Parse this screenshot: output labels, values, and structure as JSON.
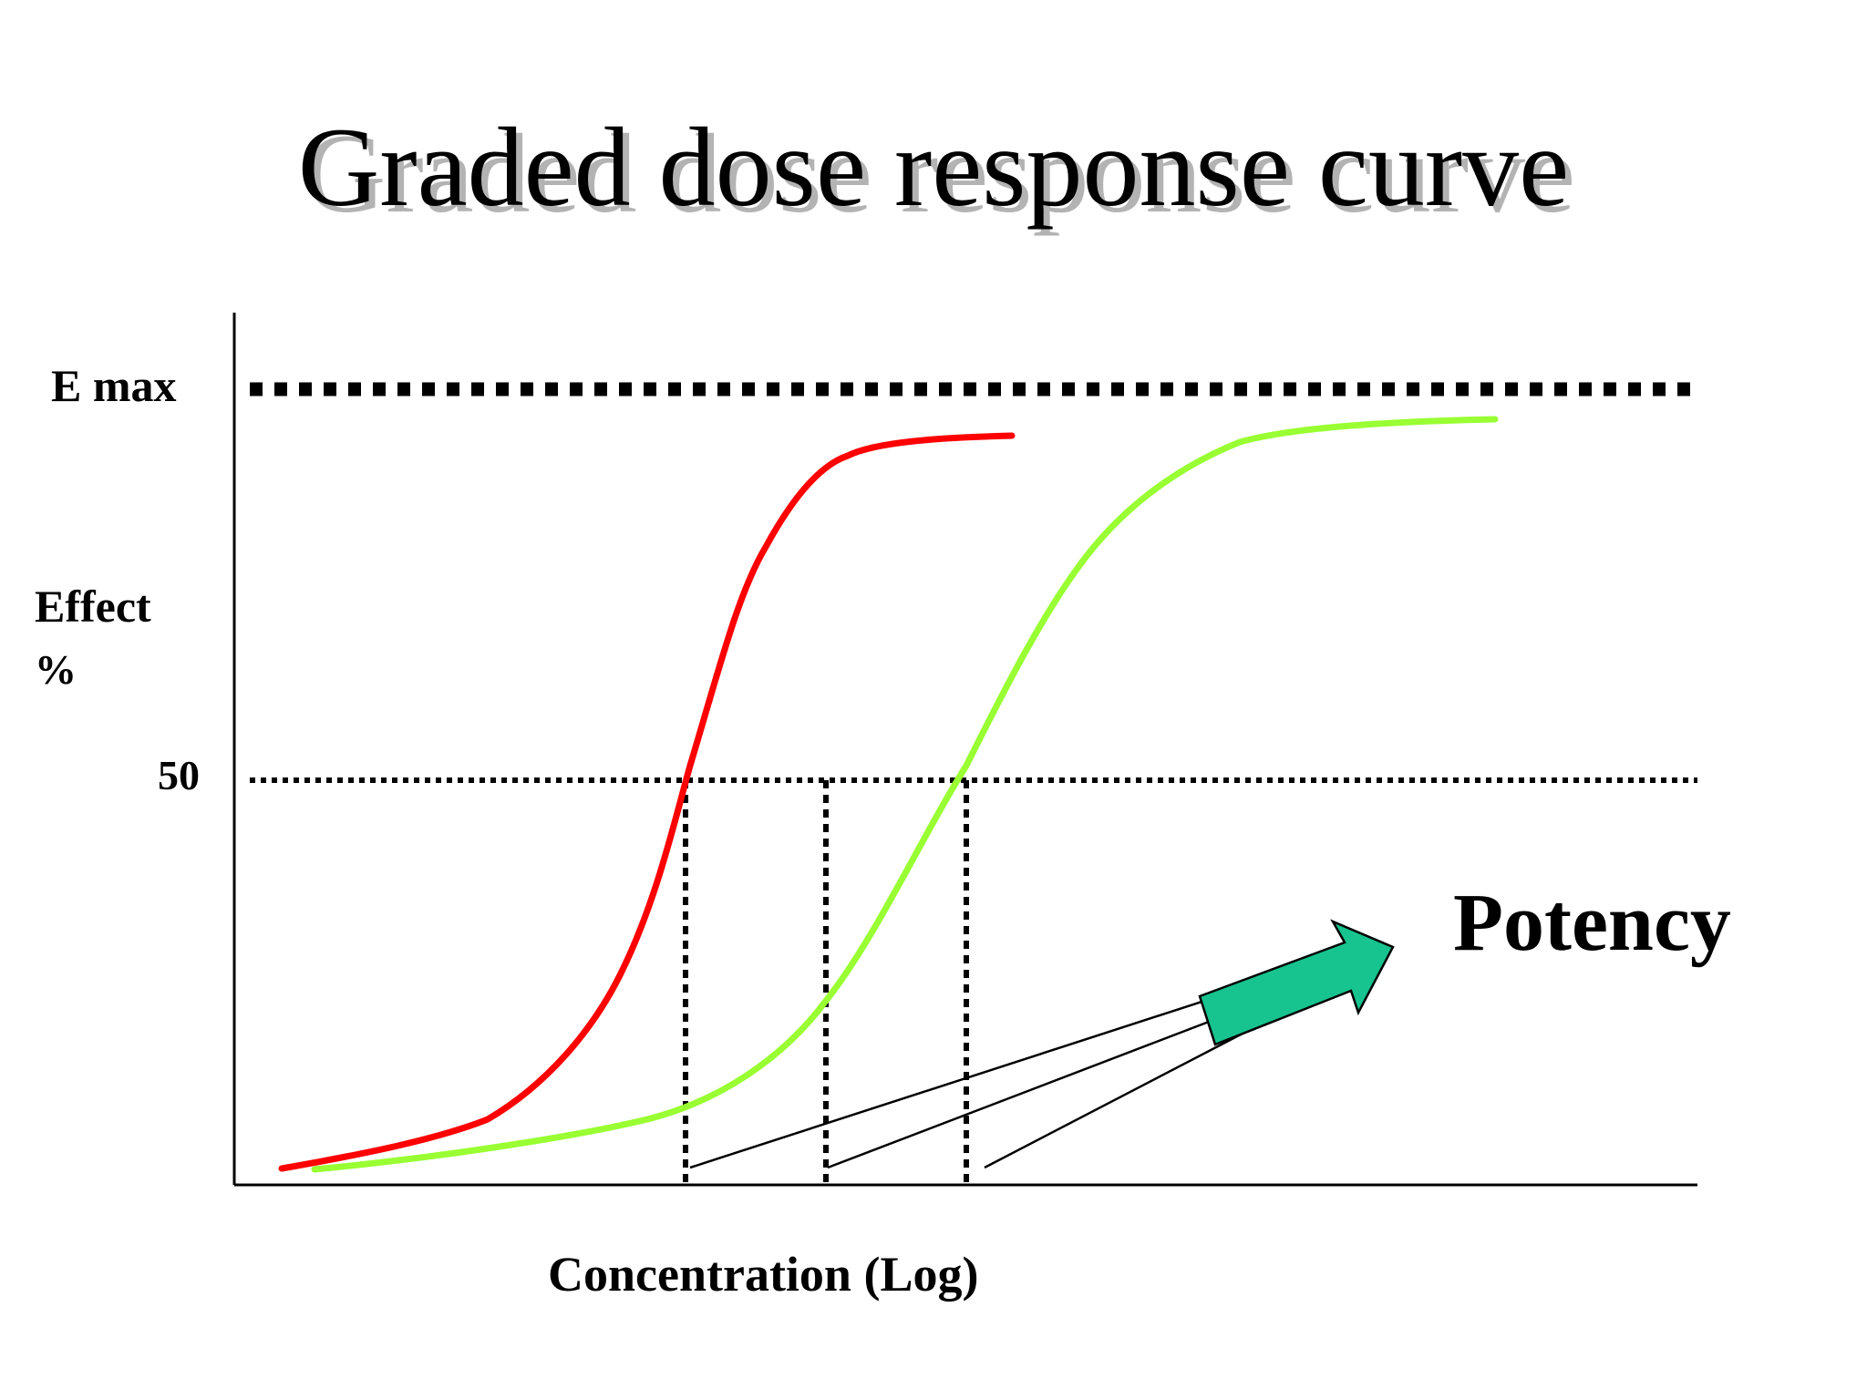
{
  "title": "Graded dose response curve",
  "labels": {
    "emax": "E max",
    "effect_line1": "Effect",
    "effect_line2": "%",
    "fifty": "50",
    "xaxis": "Concentration (Log)",
    "potency": "Potency"
  },
  "colors": {
    "red_curve": "#ff0000",
    "green_curve": "#99ff33",
    "arrow_fill": "#17c38e",
    "lines": "#000000"
  }
}
